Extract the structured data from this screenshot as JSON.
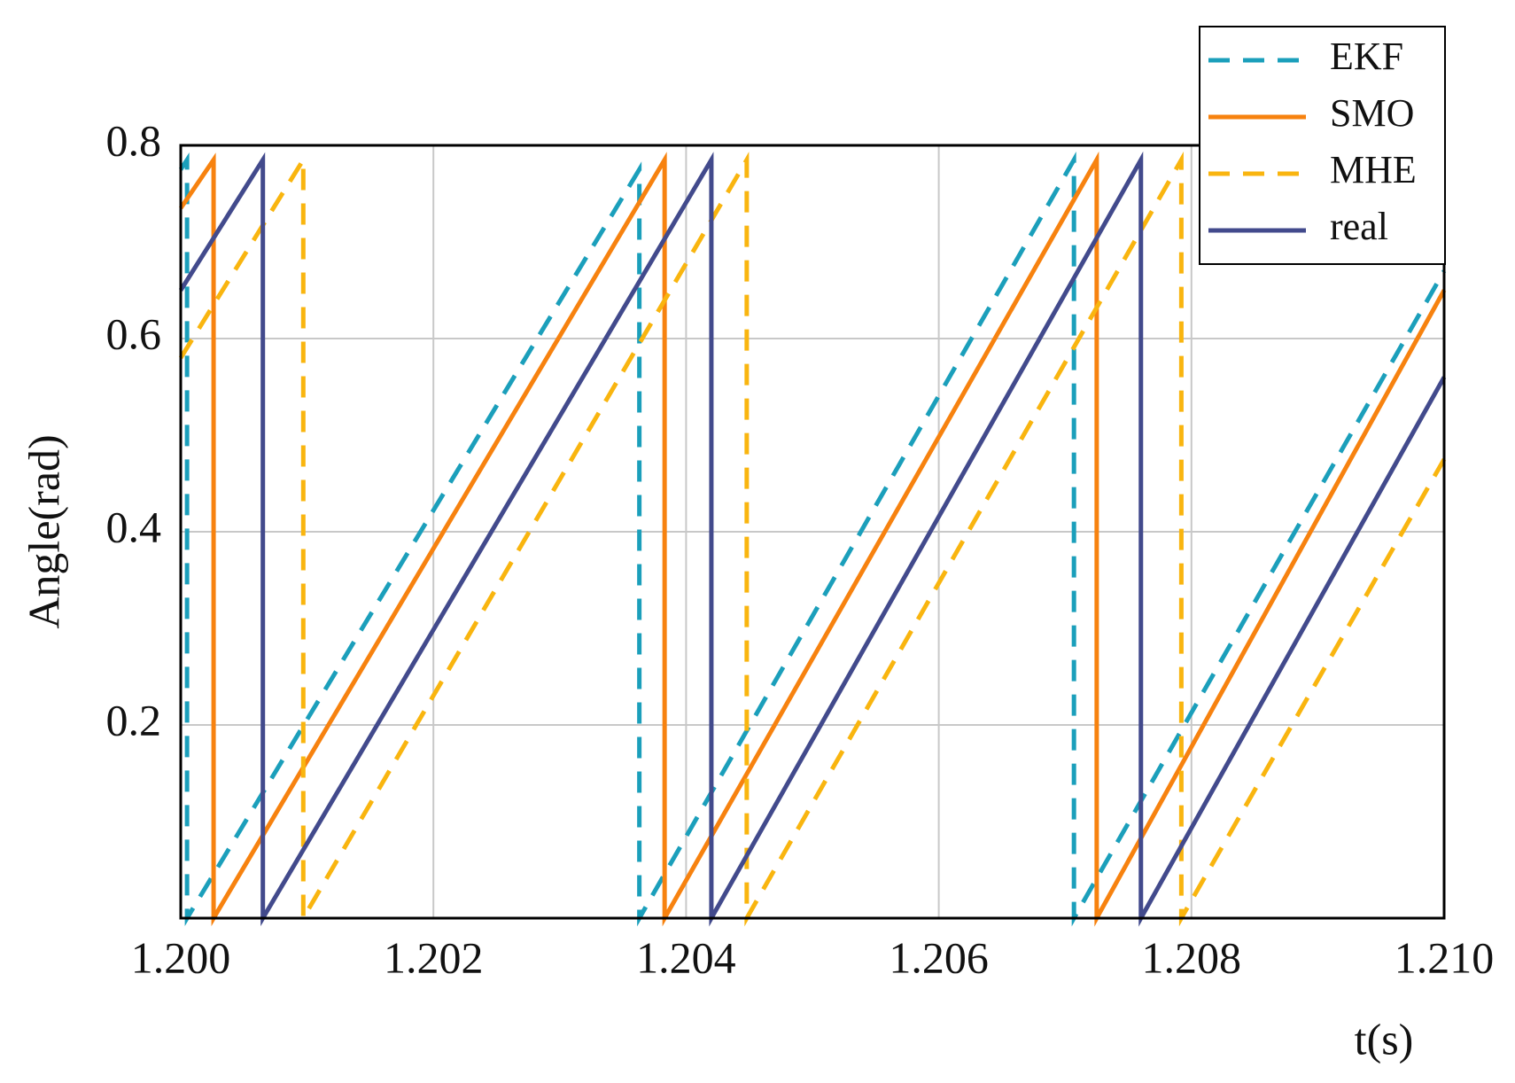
{
  "chart_data": {
    "type": "line",
    "xlabel": "t(s)",
    "ylabel": "Angle(rad)",
    "xlim": [
      1.2,
      1.21
    ],
    "ylim": [
      0,
      0.8
    ],
    "xticks": [
      {
        "value": 1.2,
        "label": "1.200"
      },
      {
        "value": 1.202,
        "label": "1.202"
      },
      {
        "value": 1.204,
        "label": "1.204"
      },
      {
        "value": 1.206,
        "label": "1.206"
      },
      {
        "value": 1.208,
        "label": "1.208"
      },
      {
        "value": 1.21,
        "label": "1.210"
      }
    ],
    "yticks": [
      0.2,
      0.4,
      0.6,
      0.8
    ],
    "grid": true,
    "legend": "upper right",
    "series": [
      {
        "name": "EKF",
        "color": "#1b9fbb",
        "dashed": true,
        "x": [
          1.2,
          1.20005,
          1.20005,
          1.20363,
          1.20363,
          1.20707,
          1.20707,
          1.21
        ],
        "values": [
          0.775,
          0.785,
          0,
          0.775,
          0,
          0.785,
          0,
          0.67
        ]
      },
      {
        "name": "SMO",
        "color": "#f7820f",
        "dashed": false,
        "x": [
          1.2,
          1.20026,
          1.20026,
          1.20383,
          1.20383,
          1.20725,
          1.20725,
          1.21
        ],
        "values": [
          0.735,
          0.785,
          0,
          0.785,
          0,
          0.785,
          0,
          0.65
        ]
      },
      {
        "name": "MHE",
        "color": "#f9b50f",
        "dashed": true,
        "x": [
          1.2,
          1.20097,
          1.20097,
          1.20448,
          1.20448,
          1.20792,
          1.20792,
          1.21
        ],
        "values": [
          0.58,
          0.785,
          0,
          0.785,
          0,
          0.785,
          0,
          0.475
        ]
      },
      {
        "name": "real",
        "color": "#424a8c",
        "dashed": false,
        "x": [
          1.2,
          1.20065,
          1.20065,
          1.2042,
          1.2042,
          1.2076,
          1.2076,
          1.21
        ],
        "values": [
          0.65,
          0.785,
          0,
          0.785,
          0,
          0.785,
          0,
          0.56
        ]
      }
    ]
  }
}
